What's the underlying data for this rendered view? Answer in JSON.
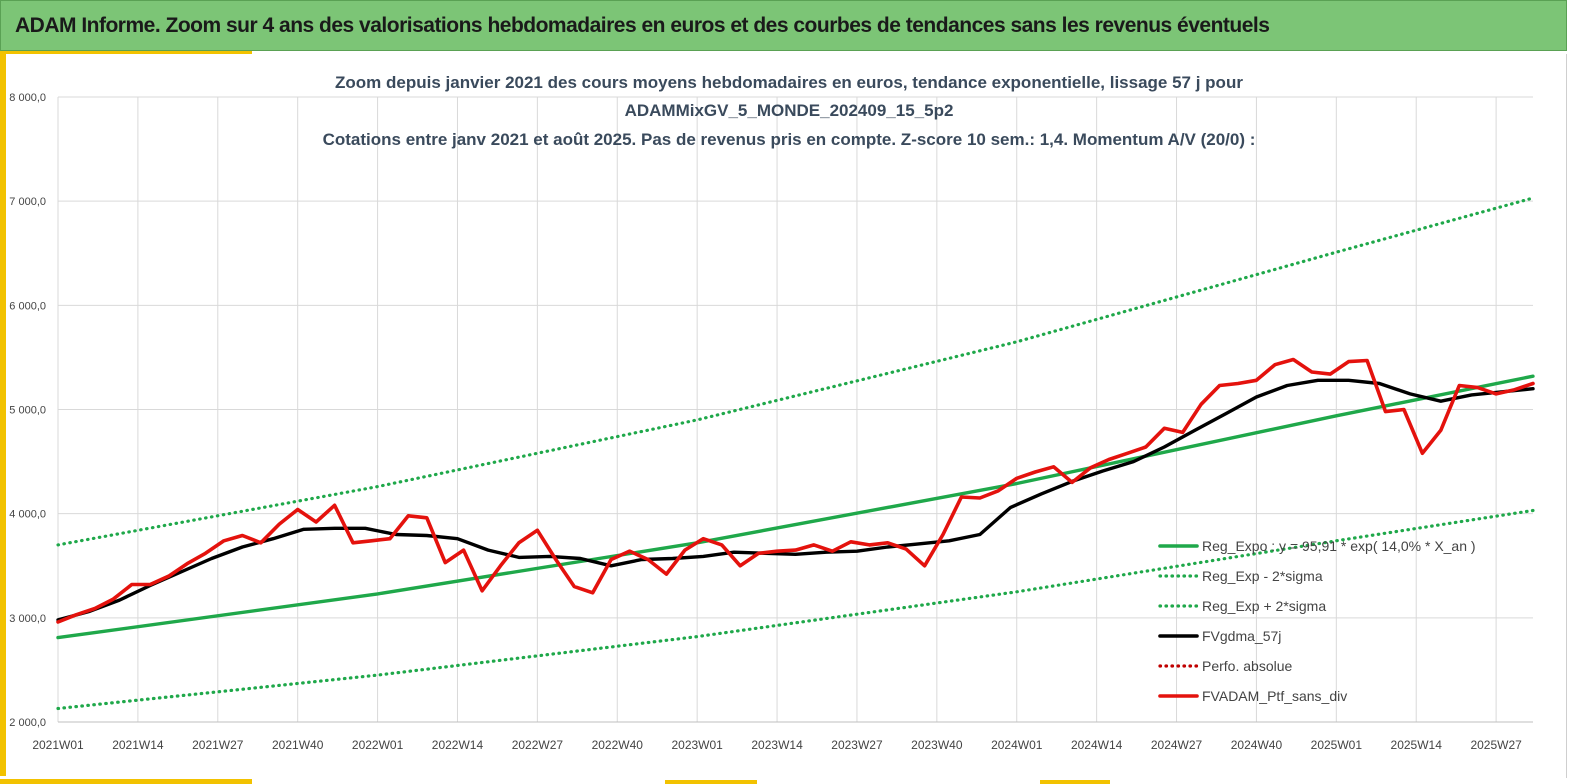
{
  "banner": {
    "title": "ADAM Informe. Zoom sur 4 ans des valorisations hebdomadaires en euros et des courbes de tendances sans les revenus éventuels",
    "color": "#7cc576"
  },
  "chart_data": {
    "type": "line",
    "title_lines": [
      "Zoom depuis janvier 2021 des cours moyens hebdomadaires  en euros, tendance exponentielle, lissage 57 j pour",
      "ADAMMixGV_5_MONDE_202409_15_5p2",
      "Cotations entre janv 2021 et août 2025. Pas de revenus pris en compte. Z-score 10 sem.: 1,4. Momentum A/V (20/0) :"
    ],
    "x_tick_labels": [
      "2021W01",
      "2021W14",
      "2021W27",
      "2021W40",
      "2022W01",
      "2022W14",
      "2022W27",
      "2022W40",
      "2023W01",
      "2023W14",
      "2023W27",
      "2023W40",
      "2024W01",
      "2024W14",
      "2024W27",
      "2024W40",
      "2025W01",
      "2025W14",
      "2025W27"
    ],
    "y_tick_labels": [
      "2 000,0",
      "3 000,0",
      "4 000,0",
      "5 000,0",
      "6 000,0",
      "7 000,0",
      "8 000,0"
    ],
    "ylim": [
      2000,
      8000
    ],
    "x_weeks": [
      0,
      240
    ],
    "grid": true,
    "legend_position": "right-bottom",
    "series": [
      {
        "name": "Reg_Expo : y = 95,91 * exp( 14,0% *  X_an )",
        "color": "#1fa84a",
        "style": "solid",
        "x": [
          0,
          52,
          104,
          156,
          208,
          240
        ],
        "y": [
          2810,
          3230,
          3720,
          4290,
          4940,
          5320
        ]
      },
      {
        "name": "Reg_Exp - 2*sigma",
        "color": "#1fa84a",
        "style": "dotted",
        "x": [
          0,
          52,
          104,
          156,
          208,
          240
        ],
        "y": [
          2130,
          2450,
          2820,
          3250,
          3740,
          4030
        ]
      },
      {
        "name": "Reg_Exp + 2*sigma",
        "color": "#1fa84a",
        "style": "dotted",
        "x": [
          0,
          52,
          104,
          156,
          208,
          240
        ],
        "y": [
          3700,
          4260,
          4900,
          5650,
          6510,
          7030
        ]
      },
      {
        "name": "FVgdma_57j",
        "color": "#000000",
        "style": "solid",
        "x": [
          0,
          5,
          10,
          15,
          20,
          25,
          30,
          35,
          40,
          45,
          50,
          55,
          60,
          65,
          70,
          75,
          80,
          85,
          90,
          95,
          100,
          105,
          110,
          115,
          120,
          125,
          130,
          135,
          140,
          145,
          150,
          155,
          160,
          165,
          170,
          175,
          180,
          185,
          190,
          195,
          200,
          205,
          210,
          215,
          220,
          225,
          230,
          235,
          240
        ],
        "y": [
          2980,
          3060,
          3170,
          3310,
          3440,
          3570,
          3680,
          3760,
          3850,
          3860,
          3860,
          3800,
          3790,
          3760,
          3650,
          3580,
          3590,
          3570,
          3500,
          3560,
          3570,
          3590,
          3630,
          3620,
          3610,
          3630,
          3640,
          3680,
          3710,
          3740,
          3800,
          4060,
          4190,
          4310,
          4410,
          4500,
          4640,
          4800,
          4960,
          5120,
          5230,
          5280,
          5280,
          5250,
          5150,
          5080,
          5140,
          5170,
          5200
        ]
      },
      {
        "name": "Perfo. absolue",
        "color": "#c00000",
        "style": "dotted",
        "x": [],
        "y": []
      },
      {
        "name": "FVADAM_Ptf_sans_div",
        "color": "#e4120d",
        "style": "solid",
        "x": [
          0,
          3,
          6,
          9,
          12,
          15,
          18,
          21,
          24,
          27,
          30,
          33,
          36,
          39,
          42,
          45,
          48,
          51,
          54,
          57,
          60,
          63,
          66,
          69,
          72,
          75,
          78,
          81,
          84,
          87,
          90,
          93,
          96,
          99,
          102,
          105,
          108,
          111,
          114,
          117,
          120,
          123,
          126,
          129,
          132,
          135,
          138,
          141,
          144,
          147,
          150,
          153,
          156,
          159,
          162,
          165,
          168,
          171,
          174,
          177,
          180,
          183,
          186,
          189,
          192,
          195,
          198,
          201,
          204,
          207,
          210,
          213,
          216,
          219,
          222,
          225,
          228,
          231,
          234,
          237,
          240
        ],
        "y": [
          2960,
          3030,
          3090,
          3180,
          3320,
          3320,
          3400,
          3520,
          3620,
          3740,
          3790,
          3720,
          3900,
          4040,
          3920,
          4080,
          3720,
          3740,
          3760,
          3980,
          3960,
          3530,
          3650,
          3260,
          3500,
          3720,
          3840,
          3560,
          3300,
          3240,
          3560,
          3640,
          3560,
          3420,
          3650,
          3760,
          3700,
          3500,
          3620,
          3640,
          3650,
          3700,
          3640,
          3730,
          3700,
          3720,
          3660,
          3500,
          3800,
          4160,
          4150,
          4220,
          4340,
          4400,
          4450,
          4300,
          4440,
          4520,
          4580,
          4640,
          4820,
          4780,
          5050,
          5230,
          5250,
          5280,
          5430,
          5480,
          5360,
          5340,
          5460,
          5470,
          4980,
          5000,
          4580,
          4800,
          5230,
          5210,
          5150,
          5190,
          5250
        ]
      }
    ]
  }
}
